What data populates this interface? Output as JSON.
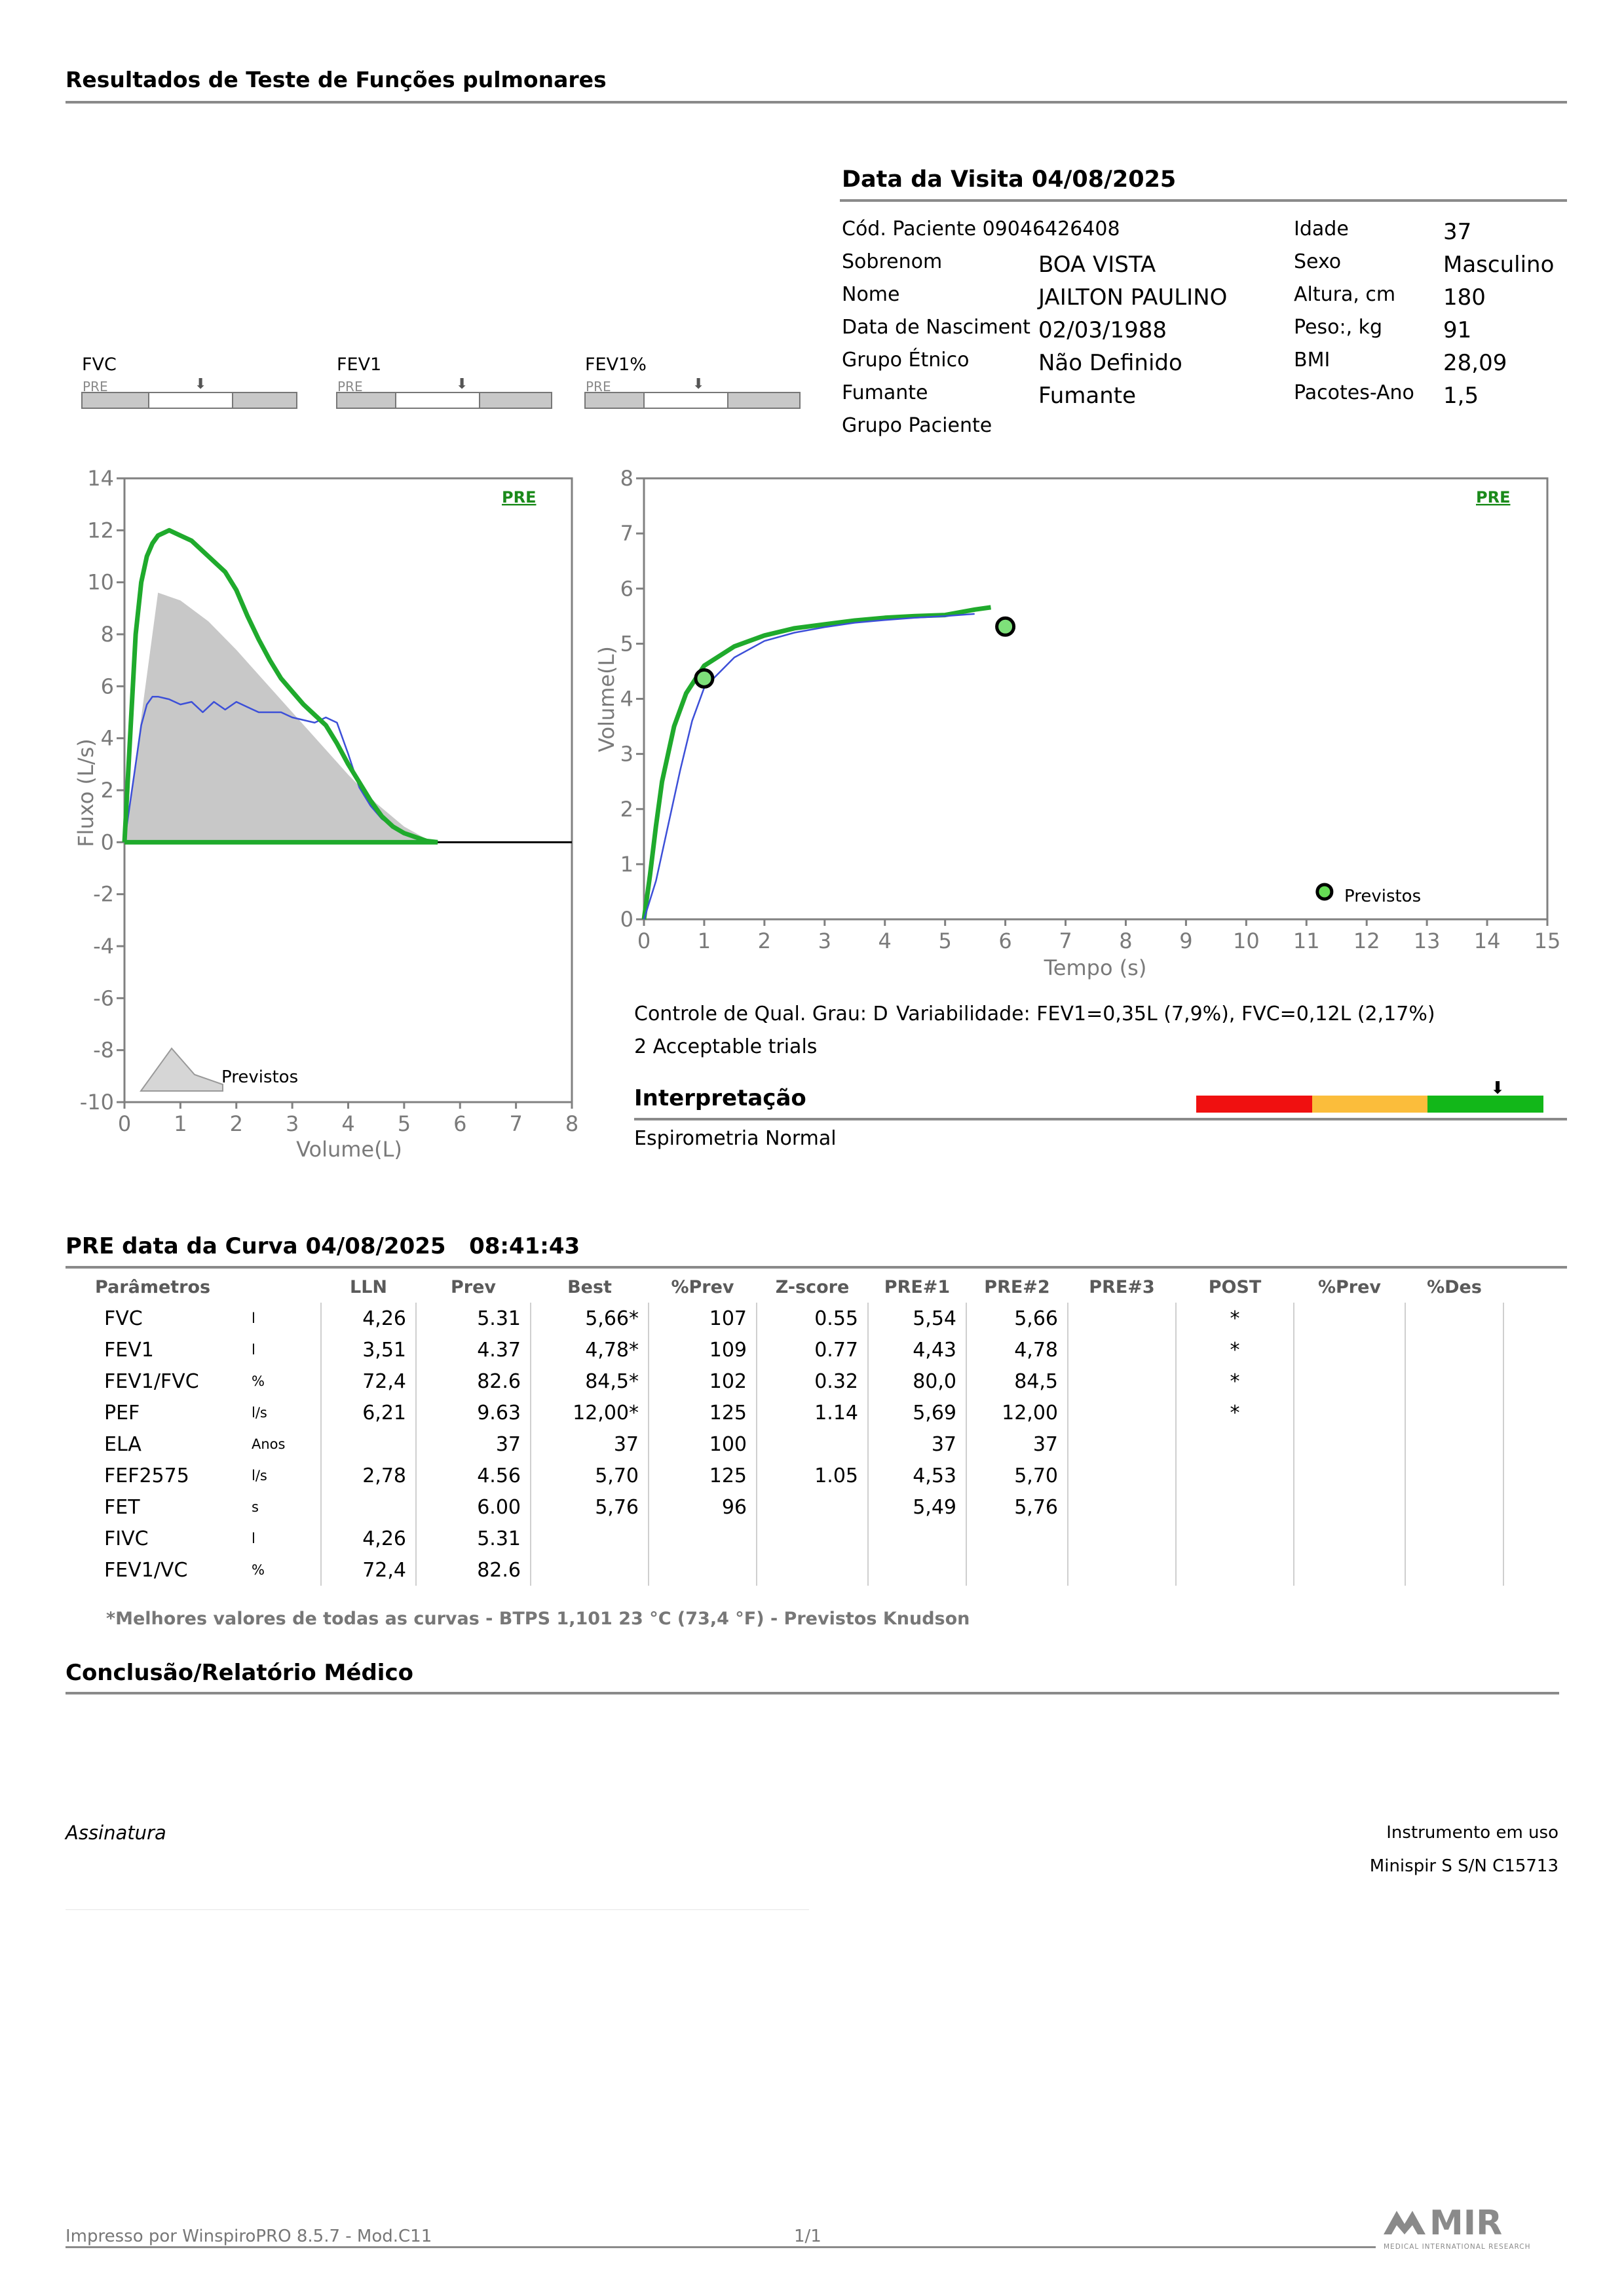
{
  "report_title": "Resultados de Teste de Funções pulmonares",
  "visit": {
    "title": "Data da Visita 04/08/2025",
    "patient_code": "Cód. Paciente 09046426408",
    "fields_left": [
      {
        "label": "Sobrenom",
        "value": "BOA VISTA"
      },
      {
        "label": "Nome",
        "value": "JAILTON PAULINO"
      },
      {
        "label": "Data de Nasciment",
        "value": "02/03/1988"
      },
      {
        "label": "Grupo Étnico",
        "value": "Não Definido"
      },
      {
        "label": "Fumante",
        "value": "Fumante"
      },
      {
        "label": "Grupo Paciente",
        "value": ""
      }
    ],
    "fields_right": [
      {
        "label": "Idade",
        "value": "37"
      },
      {
        "label": "Sexo",
        "value": "Masculino"
      },
      {
        "label": "Altura, cm",
        "value": "180"
      },
      {
        "label": "Peso:, kg",
        "value": "91"
      },
      {
        "label": "BMI",
        "value": "28,09"
      },
      {
        "label": "Pacotes-Ano",
        "value": "1,5"
      }
    ]
  },
  "gauges": [
    {
      "label": "FVC",
      "sub": "PRE",
      "arrow": "⬇"
    },
    {
      "label": "FEV1",
      "sub": "PRE",
      "arrow": "⬇"
    },
    {
      "label": "FEV1%",
      "sub": "PRE",
      "arrow": "⬇"
    }
  ],
  "flow_chart": {
    "badge": "PRE",
    "ylabel": "Fluxo (L/s)",
    "xlabel": "Volume(L)",
    "yticks": [
      "14",
      "12",
      "10",
      "8",
      "6",
      "4",
      "2",
      "0",
      "-2",
      "-4",
      "-6",
      "-8",
      "-10"
    ],
    "xticks": [
      "0",
      "1",
      "2",
      "3",
      "4",
      "5",
      "6",
      "7",
      "8"
    ],
    "predicted_label": "Previstos"
  },
  "time_chart": {
    "badge": "PRE",
    "ylabel": "Volume(L)",
    "xlabel": "Tempo (s)",
    "yticks": [
      "0",
      "1",
      "2",
      "3",
      "4",
      "5",
      "6",
      "7",
      "8"
    ],
    "xticks": [
      "0",
      "1",
      "2",
      "3",
      "4",
      "5",
      "6",
      "7",
      "8",
      "9",
      "10",
      "11",
      "12",
      "13",
      "14",
      "15"
    ],
    "predicted_label": "Previstos"
  },
  "chart_data": [
    {
      "type": "line",
      "title": "",
      "xlabel": "Volume(L)",
      "ylabel": "Fluxo (L/s)",
      "xlim": [
        0,
        8
      ],
      "ylim": [
        -10,
        14
      ],
      "series": [
        {
          "color": "#1faa2c",
          "x": [
            0,
            0.1,
            0.2,
            0.3,
            0.4,
            0.5,
            0.6,
            0.8,
            1.0,
            1.2,
            1.4,
            1.6,
            1.8,
            2.0,
            2.2,
            2.4,
            2.6,
            2.8,
            3.0,
            3.2,
            3.4,
            3.6,
            3.8,
            4.0,
            4.2,
            4.4,
            4.6,
            4.8,
            5.0,
            5.2,
            5.4,
            5.6
          ],
          "y": [
            0,
            4,
            8,
            10,
            11,
            11.5,
            11.8,
            12,
            11.8,
            11.6,
            11.2,
            10.8,
            10.4,
            9.7,
            8.7,
            7.8,
            7.0,
            6.3,
            5.8,
            5.3,
            4.9,
            4.5,
            3.8,
            3.0,
            2.3,
            1.6,
            1.0,
            0.6,
            0.35,
            0.2,
            0.05,
            0
          ]
        },
        {
          "color": "#3c4fd8",
          "x": [
            0,
            0.1,
            0.2,
            0.3,
            0.4,
            0.5,
            0.6,
            0.8,
            1.0,
            1.2,
            1.4,
            1.6,
            1.8,
            2.0,
            2.2,
            2.4,
            2.6,
            2.8,
            3.0,
            3.2,
            3.4,
            3.6,
            3.8,
            4.0,
            4.2,
            4.4,
            4.6,
            4.8,
            5.0,
            5.2,
            5.4
          ],
          "y": [
            0,
            1.5,
            3,
            4.5,
            5.3,
            5.6,
            5.6,
            5.5,
            5.3,
            5.4,
            5.0,
            5.4,
            5.1,
            5.4,
            5.2,
            5.0,
            5.0,
            5.0,
            4.8,
            4.7,
            4.6,
            4.8,
            4.6,
            3.4,
            2.1,
            1.4,
            0.9,
            0.6,
            0.35,
            0.15,
            0
          ]
        },
        {
          "color": "#c8c8c8",
          "x": [
            0,
            0.6,
            1.0,
            1.5,
            2.0,
            2.5,
            3.0,
            3.5,
            4.0,
            4.5,
            5.0,
            5.5
          ],
          "y": [
            0,
            9.6,
            9.3,
            8.5,
            7.4,
            6.2,
            5.0,
            3.8,
            2.6,
            1.5,
            0.6,
            0
          ]
        }
      ]
    },
    {
      "type": "line",
      "title": "",
      "xlabel": "Tempo (s)",
      "ylabel": "Volume(L)",
      "xlim": [
        0,
        15
      ],
      "ylim": [
        0,
        8
      ],
      "series": [
        {
          "color": "#1faa2c",
          "x": [
            0,
            0.1,
            0.2,
            0.3,
            0.5,
            0.7,
            1.0,
            1.5,
            2.0,
            2.5,
            3.0,
            3.5,
            4.0,
            4.5,
            5.0,
            5.5,
            5.76
          ],
          "y": [
            0,
            0.8,
            1.7,
            2.5,
            3.5,
            4.1,
            4.6,
            4.95,
            5.15,
            5.28,
            5.35,
            5.42,
            5.47,
            5.5,
            5.52,
            5.62,
            5.66
          ]
        },
        {
          "color": "#3c4fd8",
          "x": [
            0,
            0.2,
            0.4,
            0.6,
            0.8,
            1.0,
            1.5,
            2.0,
            2.5,
            3.0,
            3.5,
            4.0,
            4.5,
            5.0,
            5.49
          ],
          "y": [
            0,
            0.7,
            1.7,
            2.7,
            3.6,
            4.2,
            4.75,
            5.05,
            5.2,
            5.3,
            5.38,
            5.43,
            5.47,
            5.5,
            5.54
          ]
        },
        {
          "color": "#1faa2c",
          "marker": "point",
          "x": [
            1.0,
            6.0
          ],
          "y": [
            4.37,
            5.31
          ]
        },
        {
          "color": "#66dd55",
          "marker": "legend-point",
          "x": [
            11.3
          ],
          "y": [
            0.5
          ]
        }
      ]
    }
  ],
  "quality": {
    "grade": "Controle de Qual. Grau: D",
    "variability": "Variabilidade: FEV1=0,35L (7,9%), FVC=0,12L (2,17%)",
    "trials": "2 Acceptable trials"
  },
  "interpretation": {
    "title": "Interpretação",
    "text": "Espirometria Normal",
    "scale_colors": [
      "#f01010",
      "#fbbd3b",
      "#12b719"
    ],
    "level": 0.87
  },
  "curve": {
    "title": "PRE data da Curva 04/08/2025   08:41:43",
    "headers": [
      "Parâmetros",
      "",
      "LLN",
      "Prev",
      "Best",
      "%Prev",
      "Z-score",
      "PRE#1",
      "PRE#2",
      "PRE#3",
      "POST",
      "%Prev",
      "%Des"
    ],
    "rows": [
      [
        "FVC",
        "l",
        "4,26",
        "5.31",
        "5,66*",
        "107",
        "0.55",
        "5,54",
        "5,66",
        "",
        "*",
        "",
        ""
      ],
      [
        "FEV1",
        "l",
        "3,51",
        "4.37",
        "4,78*",
        "109",
        "0.77",
        "4,43",
        "4,78",
        "",
        "*",
        "",
        ""
      ],
      [
        "FEV1/FVC",
        "%",
        "72,4",
        "82.6",
        "84,5*",
        "102",
        "0.32",
        "80,0",
        "84,5",
        "",
        "*",
        "",
        ""
      ],
      [
        "PEF",
        "l/s",
        "6,21",
        "9.63",
        "12,00*",
        "125",
        "1.14",
        "5,69",
        "12,00",
        "",
        "*",
        "",
        ""
      ],
      [
        "ELA",
        "Anos",
        "",
        "37",
        "37",
        "100",
        "",
        "37",
        "37",
        "",
        "",
        "",
        ""
      ],
      [
        "FEF2575",
        "l/s",
        "2,78",
        "4.56",
        "5,70",
        "125",
        "1.05",
        "4,53",
        "5,70",
        "",
        "",
        "",
        ""
      ],
      [
        "FET",
        "s",
        "",
        "6.00",
        "5,76",
        "96",
        "",
        "5,49",
        "5,76",
        "",
        "",
        "",
        ""
      ],
      [
        "FIVC",
        "l",
        "4,26",
        "5.31",
        "",
        "",
        "",
        "",
        "",
        "",
        "",
        "",
        ""
      ],
      [
        "FEV1/VC",
        "%",
        "72,4",
        "82.6",
        "",
        "",
        "",
        "",
        "",
        "",
        "",
        "",
        ""
      ]
    ],
    "footnote": "*Melhores valores de todas as curvas - BTPS  1,101  23 °C  (73,4 °F) - Previstos Knudson"
  },
  "conclusion_title": "Conclusão/Relatório Médico",
  "signature_label": "Assinatura",
  "instrument": {
    "label": "Instrumento em uso",
    "value": "Minispir S S/N C15713"
  },
  "footer": {
    "printed_by": "Impresso por WinspiroPRO  8.5.7 - Mod.C11",
    "page": "1/1"
  },
  "logo": {
    "text": "MIR",
    "subtitle": "MEDICAL INTERNATIONAL RESEARCH",
    "color": "#8a8a8a"
  }
}
